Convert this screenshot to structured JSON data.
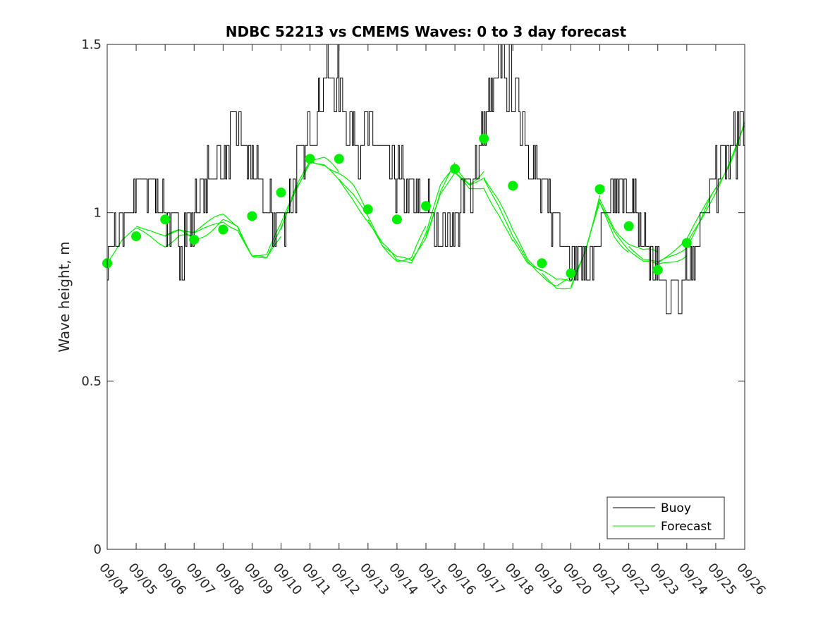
{
  "chart_data": {
    "type": "line",
    "title": "NDBC 52213 vs CMEMS Waves: 0 to 3 day forecast",
    "ylabel": "Wave height, m",
    "xlabel": "",
    "x_range_days": [
      0,
      22
    ],
    "ylim": [
      0,
      1.5
    ],
    "yticks": [
      0,
      0.5,
      1,
      1.5
    ],
    "ytick_labels": [
      "0",
      "0.5",
      "1",
      "1.5"
    ],
    "xtick_labels": [
      "09/04",
      "09/05",
      "09/06",
      "09/07",
      "09/08",
      "09/09",
      "09/10",
      "09/11",
      "09/12",
      "09/13",
      "09/14",
      "09/15",
      "09/16",
      "09/17",
      "09/18",
      "09/19",
      "09/20",
      "09/21",
      "09/22",
      "09/23",
      "09/24",
      "09/25",
      "09/26"
    ],
    "legend": {
      "position": "bottom-right",
      "entries": [
        {
          "label": "Buoy",
          "color": "#000000"
        },
        {
          "label": "Forecast",
          "color": "#00ee00"
        }
      ]
    },
    "buoy_color": "#000000",
    "forecast_color": "#00ee00",
    "buoy_baseline": [
      [
        0,
        0.92
      ],
      [
        0.5,
        0.98
      ],
      [
        1,
        1.05
      ],
      [
        1.5,
        1.1
      ],
      [
        2,
        1.0
      ],
      [
        2.5,
        0.9
      ],
      [
        3,
        1.0
      ],
      [
        3.5,
        1.1
      ],
      [
        4,
        1.15
      ],
      [
        4.5,
        1.25
      ],
      [
        5,
        1.12
      ],
      [
        5.5,
        1.0
      ],
      [
        6,
        0.98
      ],
      [
        6.5,
        1.1
      ],
      [
        7,
        1.25
      ],
      [
        7.5,
        1.4
      ],
      [
        8,
        1.38
      ],
      [
        8.5,
        1.22
      ],
      [
        9,
        1.22
      ],
      [
        9.5,
        1.18
      ],
      [
        10,
        1.1
      ],
      [
        10.5,
        1.05
      ],
      [
        11,
        1.0
      ],
      [
        11.5,
        0.96
      ],
      [
        12,
        0.98
      ],
      [
        12.5,
        1.08
      ],
      [
        13,
        1.25
      ],
      [
        13.5,
        1.42
      ],
      [
        14,
        1.38
      ],
      [
        14.5,
        1.2
      ],
      [
        15,
        1.05
      ],
      [
        15.5,
        0.98
      ],
      [
        16,
        0.9
      ],
      [
        16.5,
        0.84
      ],
      [
        17,
        0.92
      ],
      [
        17.5,
        1.05
      ],
      [
        18,
        1.05
      ],
      [
        18.5,
        0.92
      ],
      [
        19,
        0.82
      ],
      [
        19.5,
        0.76
      ],
      [
        20,
        0.84
      ],
      [
        20.5,
        0.95
      ],
      [
        21,
        1.1
      ],
      [
        21.5,
        1.2
      ],
      [
        22,
        1.25
      ]
    ],
    "buoy_noise_amplitude": 0.08,
    "forecast_dots": {
      "x": [
        0,
        1,
        2,
        3,
        4,
        5,
        6,
        7,
        8,
        9,
        10,
        11,
        12,
        13,
        14,
        15,
        16,
        17,
        18,
        19,
        20,
        21
      ],
      "y": [
        0.85,
        0.93,
        0.98,
        0.92,
        0.95,
        0.99,
        1.06,
        1.16,
        1.16,
        1.01,
        0.98,
        1.02,
        1.13,
        1.22,
        1.08,
        0.85,
        0.82,
        1.07,
        0.96,
        0.83,
        0.91,
        null
      ]
    },
    "forecast_mean": [
      [
        0,
        0.85
      ],
      [
        0.5,
        0.92
      ],
      [
        1,
        0.96
      ],
      [
        1.5,
        0.95
      ],
      [
        2,
        0.93
      ],
      [
        2.5,
        0.95
      ],
      [
        3,
        0.94
      ],
      [
        3.5,
        0.96
      ],
      [
        4,
        0.98
      ],
      [
        4.5,
        0.96
      ],
      [
        5,
        0.87
      ],
      [
        5.5,
        0.86
      ],
      [
        6,
        0.95
      ],
      [
        6.5,
        1.07
      ],
      [
        7,
        1.15
      ],
      [
        7.5,
        1.14
      ],
      [
        8,
        1.1
      ],
      [
        8.5,
        1.05
      ],
      [
        9,
        0.98
      ],
      [
        9.5,
        0.9
      ],
      [
        10,
        0.86
      ],
      [
        10.5,
        0.85
      ],
      [
        11,
        0.93
      ],
      [
        11.5,
        1.06
      ],
      [
        12,
        1.12
      ],
      [
        12.5,
        1.08
      ],
      [
        13,
        1.1
      ],
      [
        13.5,
        1.02
      ],
      [
        14,
        0.92
      ],
      [
        14.5,
        0.85
      ],
      [
        15,
        0.82
      ],
      [
        15.5,
        0.78
      ],
      [
        16,
        0.78
      ],
      [
        16.5,
        0.88
      ],
      [
        17,
        1.03
      ],
      [
        17.5,
        0.95
      ],
      [
        18,
        0.9
      ],
      [
        18.5,
        0.86
      ],
      [
        19,
        0.85
      ],
      [
        19.5,
        0.88
      ],
      [
        20,
        0.91
      ],
      [
        20.5,
        0.98
      ],
      [
        21,
        1.06
      ],
      [
        21.5,
        1.14
      ],
      [
        22,
        1.24
      ]
    ]
  }
}
